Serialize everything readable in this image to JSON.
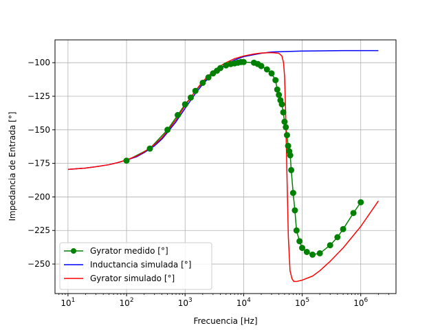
{
  "chart_data": {
    "type": "line",
    "xlabel": "Frecuencia [Hz]",
    "ylabel": "Impedancia de Entrada [°]",
    "xscale": "log",
    "xlim": [
      6,
      4000000
    ],
    "ylim": [
      -272,
      -83
    ],
    "grid": true,
    "legend_position": "lower-left",
    "x_ticks": [
      {
        "value": 10,
        "base": "10",
        "exp": "1"
      },
      {
        "value": 100,
        "base": "10",
        "exp": "2"
      },
      {
        "value": 1000,
        "base": "10",
        "exp": "3"
      },
      {
        "value": 10000,
        "base": "10",
        "exp": "4"
      },
      {
        "value": 100000,
        "base": "10",
        "exp": "5"
      },
      {
        "value": 1000000,
        "base": "10",
        "exp": "6"
      }
    ],
    "y_ticks": [
      {
        "value": -100,
        "label": "−100"
      },
      {
        "value": -125,
        "label": "−125"
      },
      {
        "value": -150,
        "label": "−150"
      },
      {
        "value": -175,
        "label": "−175"
      },
      {
        "value": -200,
        "label": "−200"
      },
      {
        "value": -225,
        "label": "−225"
      },
      {
        "value": -250,
        "label": "−250"
      }
    ],
    "series": [
      {
        "name": "Gyrator medido [°]",
        "color": "#008000",
        "marker": "circle",
        "x": [
          100,
          250,
          500,
          750,
          1000,
          1250,
          1500,
          2000,
          2500,
          3000,
          3500,
          4000,
          5000,
          6000,
          7000,
          8000,
          9000,
          10000,
          15000,
          17500,
          20000,
          25000,
          30000,
          35000,
          37500,
          40000,
          42500,
          45000,
          47500,
          50000,
          52500,
          55000,
          57500,
          60000,
          62500,
          65000,
          70000,
          75000,
          80000,
          90000,
          100000,
          120000,
          150000,
          200000,
          300000,
          400000,
          500000,
          750000,
          1000000
        ],
        "y": [
          -173,
          -164,
          -150,
          -139,
          -131,
          -126,
          -121,
          -115,
          -111,
          -108,
          -106,
          -104,
          -102,
          -101,
          -100.5,
          -100,
          -99.5,
          -99.5,
          -100,
          -101,
          -102.5,
          -105,
          -108,
          -113,
          -120,
          -124,
          -128,
          -131,
          -137,
          -144,
          -148,
          -154,
          -162,
          -166,
          -169,
          -180,
          -197,
          -210,
          -225,
          -233,
          -238,
          -241,
          -243,
          -242,
          -236,
          -230,
          -224,
          -212,
          -204
        ]
      },
      {
        "name": "Inductancia simulada [°]",
        "color": "#0000ff",
        "marker": "none",
        "x": [
          10,
          20,
          30,
          50,
          70,
          100,
          150,
          200,
          300,
          400,
          500,
          700,
          1000,
          1500,
          2000,
          3000,
          4000,
          5000,
          7000,
          10000,
          15000,
          20000,
          30000,
          50000,
          70000,
          100000,
          200000,
          500000,
          1000000,
          2000000
        ],
        "y": [
          -179.5,
          -178.5,
          -177.5,
          -176,
          -174.5,
          -172.5,
          -170,
          -167,
          -162,
          -157,
          -152,
          -144,
          -134,
          -123,
          -116,
          -108,
          -104,
          -101.5,
          -98,
          -95.5,
          -94,
          -93,
          -92,
          -91.7,
          -91.5,
          -91.3,
          -91.2,
          -91,
          -91,
          -91
        ]
      },
      {
        "name": "Gyrator simulado [°]",
        "color": "#ff0000",
        "marker": "none",
        "x": [
          10,
          20,
          30,
          50,
          70,
          100,
          150,
          200,
          300,
          400,
          500,
          700,
          1000,
          1500,
          2000,
          3000,
          4000,
          5000,
          7000,
          10000,
          15000,
          20000,
          30000,
          40000,
          45000,
          48000,
          50000,
          52000,
          55000,
          58000,
          62000,
          67000,
          72000,
          80000,
          100000,
          150000,
          200000,
          300000,
          500000,
          1000000,
          2000000
        ],
        "y": [
          -179.5,
          -178.5,
          -177.5,
          -176,
          -174.5,
          -172.5,
          -169.5,
          -166.5,
          -161,
          -156,
          -151,
          -142.5,
          -132,
          -121,
          -114,
          -106.5,
          -102.5,
          -100,
          -97,
          -95,
          -93.5,
          -92.8,
          -92.5,
          -93,
          -95,
          -100,
          -110,
          -135,
          -185,
          -230,
          -255,
          -261,
          -263,
          -263,
          -262,
          -259,
          -255,
          -248,
          -238,
          -222,
          -203
        ]
      }
    ]
  }
}
